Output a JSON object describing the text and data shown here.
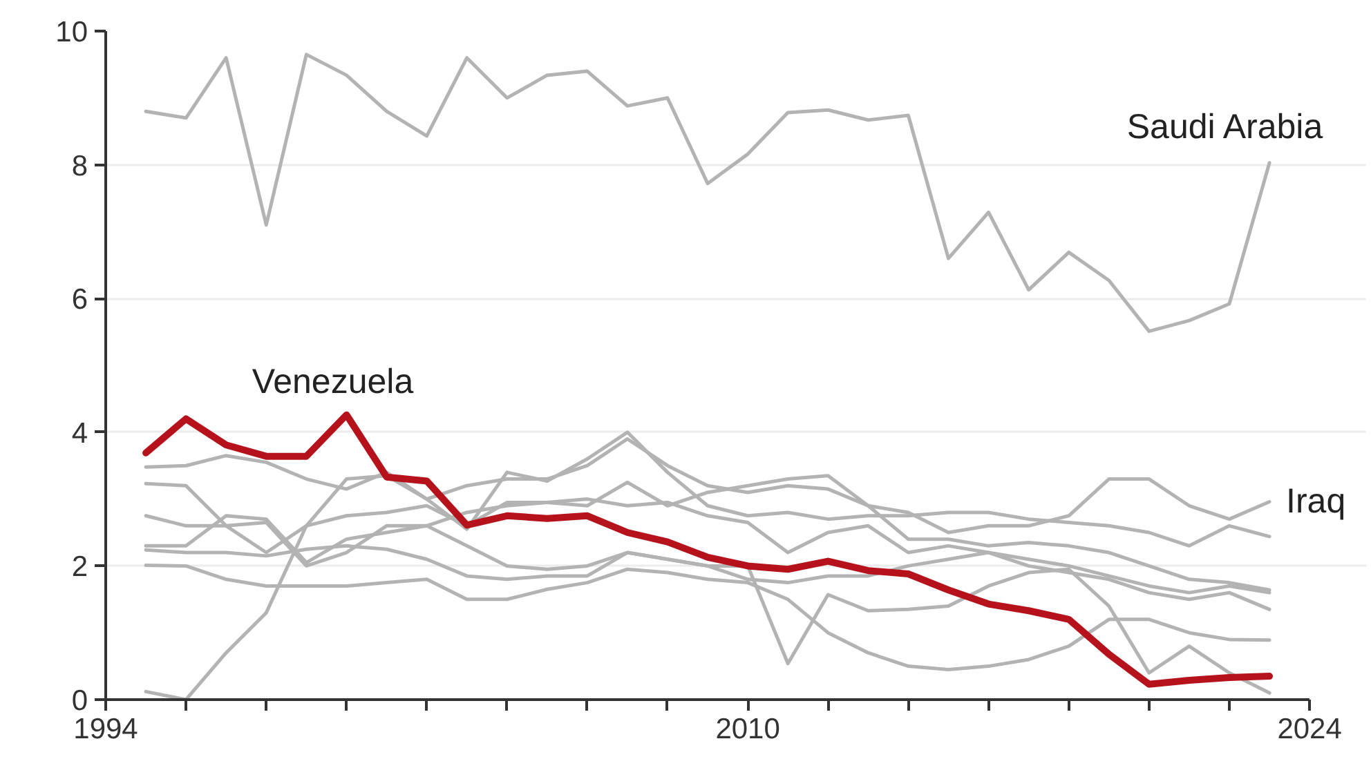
{
  "chart_data": {
    "type": "line",
    "x": [
      1995,
      1996,
      1997,
      1998,
      1999,
      2000,
      2001,
      2002,
      2003,
      2004,
      2005,
      2006,
      2007,
      2008,
      2009,
      2010,
      2011,
      2012,
      2013,
      2014,
      2015,
      2016,
      2017,
      2018,
      2019,
      2020,
      2021,
      2022,
      2023
    ],
    "series": [
      {
        "name": "Saudi Arabia",
        "color": "#b3b3b3",
        "values": [
          8.8,
          8.7,
          9.6,
          7.1,
          9.65,
          9.34,
          8.8,
          8.43,
          9.6,
          9.0,
          9.34,
          9.4,
          8.88,
          9.0,
          7.72,
          8.16,
          8.78,
          8.82,
          8.67,
          8.74,
          6.6,
          7.29,
          6.13,
          6.69,
          6.27,
          5.51,
          5.67,
          5.92,
          8.03
        ]
      },
      {
        "name": "Iraq",
        "color": "#b3b3b3",
        "values": [
          0.12,
          0.0,
          0.7,
          1.3,
          2.6,
          3.3,
          3.35,
          3.0,
          3.2,
          3.3,
          3.3,
          3.5,
          3.9,
          3.5,
          3.2,
          3.1,
          3.2,
          3.15,
          2.9,
          2.8,
          2.5,
          2.6,
          2.6,
          2.75,
          3.3,
          3.3,
          2.9,
          2.7,
          2.96
        ]
      },
      {
        "color": "#b3b3b3",
        "values": [
          3.48,
          3.5,
          3.65,
          3.55,
          3.3,
          3.15,
          3.4,
          3.0,
          2.55,
          3.4,
          3.27,
          3.6,
          4.0,
          3.4,
          2.9,
          2.75,
          2.8,
          2.7,
          2.75,
          2.75,
          2.8,
          2.8,
          2.7,
          2.65,
          2.6,
          2.5,
          2.3,
          2.6,
          2.44
        ]
      },
      {
        "color": "#b3b3b3",
        "values": [
          3.23,
          3.2,
          2.6,
          2.2,
          2.6,
          2.75,
          2.8,
          2.9,
          2.6,
          2.95,
          2.95,
          2.9,
          3.25,
          2.9,
          3.1,
          3.2,
          3.3,
          3.35,
          2.9,
          2.4,
          2.4,
          2.3,
          2.35,
          2.3,
          2.2,
          2.0,
          1.8,
          1.75,
          1.64
        ]
      },
      {
        "color": "#b3b3b3",
        "values": [
          2.75,
          2.6,
          2.6,
          2.65,
          2.0,
          2.2,
          2.6,
          2.6,
          2.8,
          2.9,
          2.95,
          3.0,
          2.9,
          2.95,
          2.75,
          2.65,
          2.2,
          2.5,
          2.6,
          2.2,
          2.3,
          2.2,
          2.1,
          2.0,
          1.85,
          1.7,
          1.6,
          1.7,
          1.6
        ]
      },
      {
        "color": "#b3b3b3",
        "values": [
          2.3,
          2.3,
          2.75,
          2.7,
          2.05,
          2.4,
          2.5,
          2.6,
          2.3,
          2.0,
          1.95,
          2.0,
          2.2,
          2.1,
          2.0,
          2.0,
          0.54,
          1.57,
          1.33,
          1.35,
          1.4,
          1.7,
          1.9,
          1.95,
          1.4,
          0.4,
          0.8,
          0.4,
          0.1
        ]
      },
      {
        "color": "#b3b3b3",
        "values": [
          2.24,
          2.2,
          2.2,
          2.15,
          2.25,
          2.3,
          2.25,
          2.1,
          1.85,
          1.8,
          1.85,
          1.85,
          2.2,
          2.1,
          2.0,
          1.8,
          1.75,
          1.85,
          1.85,
          2.0,
          2.1,
          2.2,
          2.0,
          1.9,
          1.8,
          1.6,
          1.5,
          1.6,
          1.35
        ]
      },
      {
        "color": "#b3b3b3",
        "values": [
          2.01,
          2.0,
          1.8,
          1.7,
          1.7,
          1.7,
          1.75,
          1.8,
          1.5,
          1.5,
          1.65,
          1.75,
          1.95,
          1.9,
          1.8,
          1.75,
          1.5,
          1.0,
          0.7,
          0.5,
          0.45,
          0.5,
          0.6,
          0.8,
          1.2,
          1.2,
          1.0,
          0.9,
          0.89
        ]
      },
      {
        "name": "Venezuela",
        "color": "#b5121b",
        "values": [
          3.69,
          4.2,
          3.81,
          3.64,
          3.64,
          4.26,
          3.33,
          3.27,
          2.61,
          2.75,
          2.71,
          2.75,
          2.5,
          2.36,
          2.13,
          2.0,
          1.95,
          2.07,
          1.93,
          1.88,
          1.64,
          1.43,
          1.33,
          1.2,
          0.68,
          0.23,
          0.29,
          0.33,
          0.35
        ]
      }
    ],
    "xlim": [
      1994,
      2024
    ],
    "xticks": [
      1994,
      {
        "value": 1996,
        "label": null
      },
      {
        "value": 1998,
        "label": null
      },
      {
        "value": 2000,
        "label": null
      },
      {
        "value": 2002,
        "label": null
      },
      {
        "value": 2004,
        "label": null
      },
      {
        "value": 2006,
        "label": null
      },
      {
        "value": 2008,
        "label": null
      },
      2010,
      {
        "value": 2012,
        "label": null
      },
      {
        "value": 2014,
        "label": null
      },
      {
        "value": 2016,
        "label": null
      },
      {
        "value": 2018,
        "label": null
      },
      {
        "value": 2020,
        "label": null
      },
      {
        "value": 2022,
        "label": null
      },
      2024
    ],
    "ylim": [
      0,
      10
    ],
    "yticks": [
      0,
      2,
      4,
      6,
      8,
      10
    ],
    "grid": "y",
    "legend": false,
    "marker": "none",
    "line_style": "solid"
  }
}
